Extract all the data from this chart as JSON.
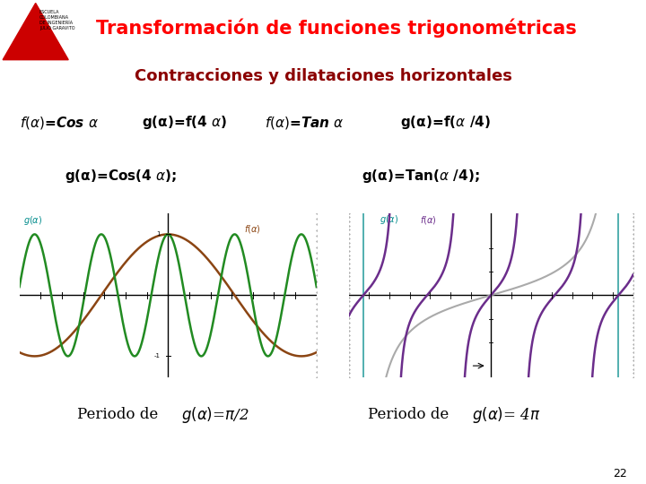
{
  "title": "Transformación de funciones trigonométricas",
  "subtitle": "Contracciones y dilataciones horizontales",
  "title_color": "#FF0000",
  "title_bg": "#4a7a1e",
  "subtitle_bg": "#f08080",
  "subtitle_color": "#8B0000",
  "bg_color": "#ffffff",
  "cos_color": "#8B4513",
  "cos4_color": "#228B22",
  "tan_color": "#6B2D8B",
  "tan4_color": "#AAAAAA",
  "tan_asym_color": "#008B8B",
  "label_g_color": "#008B8B",
  "label_f_color": "#8B4513",
  "plot1_xlim": [
    -3.5,
    3.5
  ],
  "plot1_ylim": [
    -1.35,
    1.35
  ],
  "plot2_xlim": [
    -7.0,
    7.0
  ],
  "plot2_ylim": [
    -3.5,
    3.5
  ],
  "period_left": "Periodo de ",
  "period_right": "Periodo de ",
  "page_num": "22"
}
